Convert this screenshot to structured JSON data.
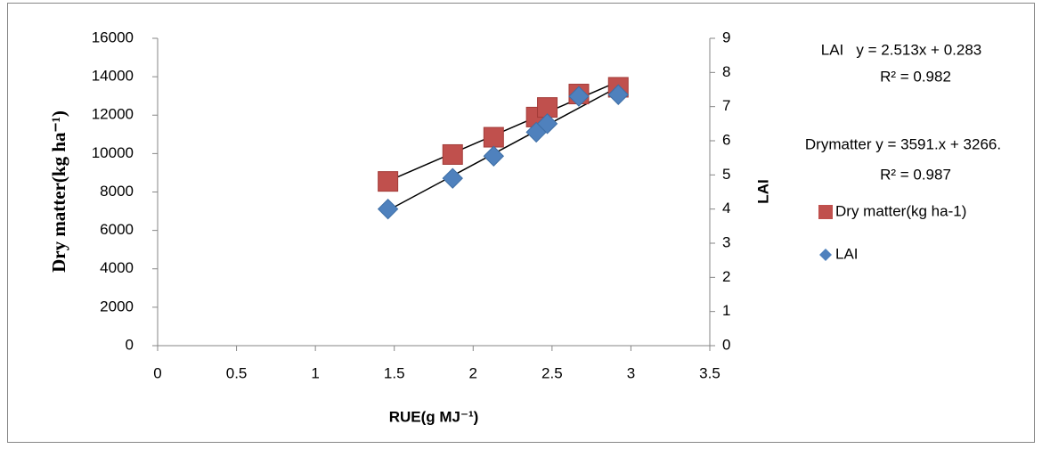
{
  "chart_data": {
    "type": "scatter",
    "x_label": "RUE(g MJ⁻¹)",
    "y_label": "Dry matter(kg ha⁻¹)",
    "y2_label": "LAI",
    "x": [
      1.46,
      1.87,
      2.13,
      2.4,
      2.47,
      2.67,
      2.92
    ],
    "series": [
      {
        "name": "Dry matter(kg ha-1)",
        "color": "#c0504d",
        "marker": "square",
        "values": [
          8550,
          9950,
          10850,
          11900,
          12400,
          13100,
          13450
        ]
      },
      {
        "name": "LAI",
        "color": "#4f81bd",
        "marker": "diamond",
        "axis": "y2",
        "values": [
          4.0,
          4.9,
          5.55,
          6.25,
          6.5,
          7.3,
          7.35
        ]
      }
    ],
    "xlim": [
      0,
      3.5
    ],
    "xticks": [
      0,
      0.5,
      1,
      1.5,
      2,
      2.5,
      3,
      3.5
    ],
    "ylim": [
      0,
      16000
    ],
    "yticks": [
      0,
      2000,
      4000,
      6000,
      8000,
      10000,
      12000,
      14000,
      16000
    ],
    "y2lim": [
      0,
      9
    ],
    "y2ticks": [
      0,
      1,
      2,
      3,
      4,
      5,
      6,
      7,
      8,
      9
    ],
    "trendline": true,
    "legend": "right",
    "annotations": [
      "LAI   y = 2.513x + 0.283",
      "R² = 0.982",
      "Drymatter y = 3591.x + 3266.",
      "R² = 0.987"
    ]
  }
}
